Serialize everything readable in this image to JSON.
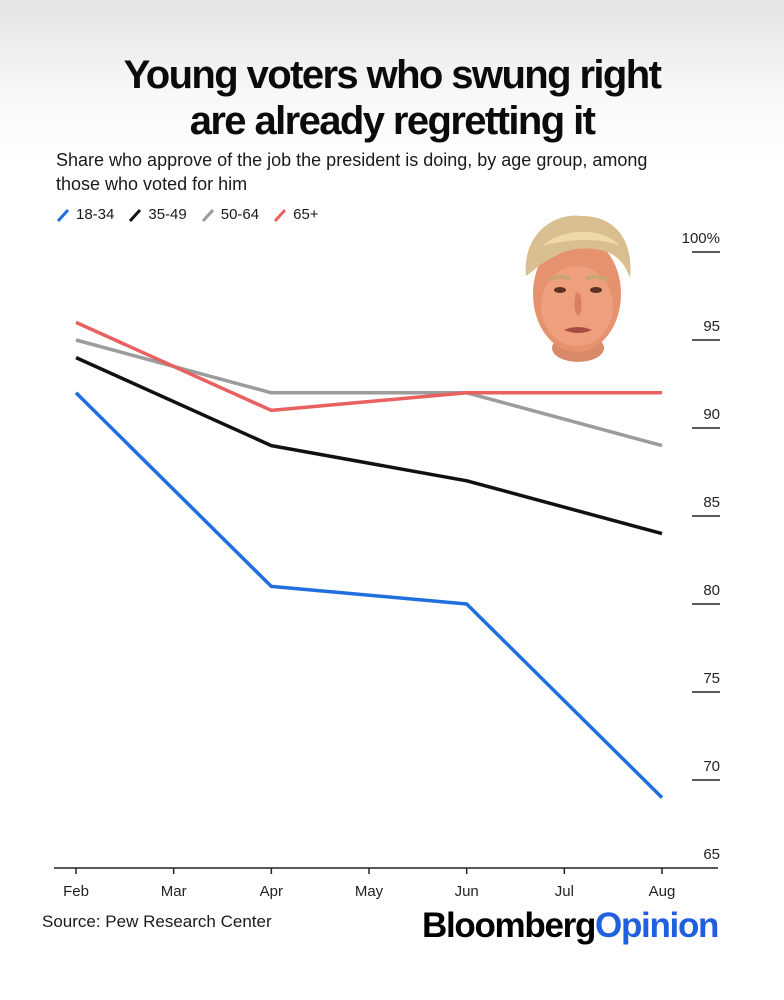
{
  "chart_data": {
    "type": "line",
    "title": "Young voters who swung right are already regretting it",
    "title_lines": [
      "Young voters who swung right",
      "are already regretting it"
    ],
    "subtitle": "Share who approve of the job the president is doing, by age group, among those who voted for him",
    "subtitle_lines": [
      "Share who approve of the job the president is doing, by age group, among",
      "those who voted for him"
    ],
    "x": [
      "Feb",
      "Mar",
      "Apr",
      "May",
      "Jun",
      "Jul",
      "Aug"
    ],
    "ylim": [
      65,
      100
    ],
    "yticks": [
      100,
      95,
      90,
      85,
      80,
      75,
      70,
      65
    ],
    "ytick_labels": [
      "100%",
      "95",
      "90",
      "85",
      "80",
      "75",
      "70",
      "65"
    ],
    "series": [
      {
        "name": "18-34",
        "color": "#1f6fde",
        "points": [
          [
            "Feb",
            92
          ],
          [
            "Apr",
            81
          ],
          [
            "Jun",
            80
          ],
          [
            "Aug",
            69
          ]
        ]
      },
      {
        "name": "35-49",
        "color": "#111111",
        "points": [
          [
            "Feb",
            94
          ],
          [
            "Apr",
            89
          ],
          [
            "Jun",
            87
          ],
          [
            "Aug",
            84
          ]
        ]
      },
      {
        "name": "50-64",
        "color": "#9c9c9c",
        "points": [
          [
            "Feb",
            95
          ],
          [
            "Apr",
            92
          ],
          [
            "Jun",
            92
          ],
          [
            "Aug",
            89
          ]
        ]
      },
      {
        "name": "65+",
        "color": "#e8605f",
        "points": [
          [
            "Feb",
            96
          ],
          [
            "Apr",
            91
          ],
          [
            "Jun",
            92
          ],
          [
            "Aug",
            92
          ]
        ]
      }
    ]
  },
  "source": "Source: Pew Research Center",
  "brand": {
    "part1": "Bloomberg",
    "part2": "Opinion"
  },
  "icons": {
    "portrait": "president-portrait-icon"
  }
}
